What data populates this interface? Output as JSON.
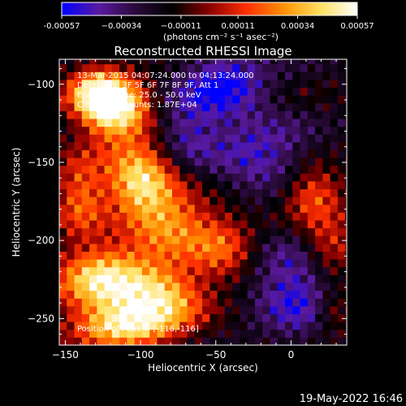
{
  "chart_data": {
    "type": "heatmap",
    "title": "Reconstructed RHESSI Image",
    "xlabel": "Heliocentric X (arcsec)",
    "ylabel": "Heliocentric Y (arcsec)",
    "xlim": [
      -154,
      37
    ],
    "ylim": [
      -267,
      -84
    ],
    "x_ticks": [
      -150,
      -100,
      -50,
      0
    ],
    "x_tick_labels": [
      "−150",
      "−100",
      "−50",
      "0"
    ],
    "y_ticks": [
      -100,
      -150,
      -200,
      -250
    ],
    "y_tick_labels": [
      "−100",
      "−150",
      "−200",
      "−250"
    ],
    "colorbar": {
      "label": "(photons cm⁻² s⁻¹ asec⁻²)",
      "range": [
        -0.00057,
        0.00057
      ],
      "ticks": [
        -0.00057,
        -0.00034,
        -0.00011,
        0.00011,
        0.00034,
        0.00057
      ],
      "tick_labels": [
        "-0.00057",
        "−0.00034",
        "−0.00011",
        "0.00011",
        "0.00034",
        "0.00057"
      ],
      "colors": [
        "#0000ff",
        "#5a1aa0",
        "#2a0a3a",
        "#000000",
        "#8a0000",
        "#ff3000",
        "#ff9000",
        "#ffe060",
        "#ffffff"
      ]
    },
    "annotations": [
      "13-Mar-2015 04:07:24.000 to 04:13:24.000",
      "Detectors: 3F 5F 6F 7F 8F 9F, Att 1",
      "Energy Range: 25.0 - 50.0 keV",
      "Clean   Total counts: 1.87E+04"
    ],
    "peak_label": "Position of Peak = [-116,-116]",
    "sources": [
      {
        "x": -116,
        "y": -116,
        "amp": 1.0,
        "sx": 16,
        "sy": 14
      },
      {
        "x": -130,
        "y": -105,
        "amp": 0.7,
        "sx": 14,
        "sy": 12
      },
      {
        "x": -100,
        "y": -160,
        "amp": 0.9,
        "sx": 16,
        "sy": 16
      },
      {
        "x": -80,
        "y": -190,
        "amp": 0.65,
        "sx": 20,
        "sy": 14
      },
      {
        "x": -140,
        "y": -170,
        "amp": 0.55,
        "sx": 12,
        "sy": 18
      },
      {
        "x": -125,
        "y": -225,
        "amp": 0.9,
        "sx": 22,
        "sy": 16
      },
      {
        "x": -85,
        "y": -235,
        "amp": 0.75,
        "sx": 20,
        "sy": 14
      },
      {
        "x": -110,
        "y": -255,
        "amp": 0.8,
        "sx": 24,
        "sy": 10
      },
      {
        "x": -45,
        "y": -205,
        "amp": 0.45,
        "sx": 15,
        "sy": 15
      },
      {
        "x": 15,
        "y": -170,
        "amp": 0.55,
        "sx": 14,
        "sy": 12
      },
      {
        "x": 25,
        "y": -205,
        "amp": 0.5,
        "sx": 14,
        "sy": 14
      },
      {
        "x": 28,
        "y": -245,
        "amp": 0.35,
        "sx": 10,
        "sy": 10
      },
      {
        "x": -45,
        "y": -100,
        "amp": -0.55,
        "sx": 20,
        "sy": 15
      },
      {
        "x": -20,
        "y": -145,
        "amp": -0.4,
        "sx": 22,
        "sy": 16
      },
      {
        "x": 5,
        "y": -230,
        "amp": -0.5,
        "sx": 20,
        "sy": 22
      },
      {
        "x": -70,
        "y": -130,
        "amp": -0.35,
        "sx": 16,
        "sy": 14
      }
    ]
  },
  "footer": {
    "date": "19-May-2022 16:46"
  }
}
